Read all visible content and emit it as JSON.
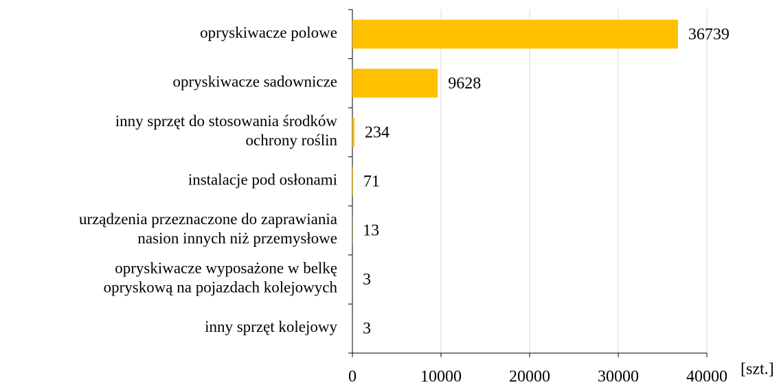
{
  "chart_data": {
    "type": "bar",
    "orientation": "horizontal",
    "categories": [
      "opryskiwacze polowe",
      "opryskiwacze sadownicze",
      "inny sprzęt do stosowania środków\nochrony roślin",
      "instalacje pod osłonami",
      "urządzenia przeznaczone do zaprawiania\nnasion innych niż przemysłowe",
      "opryskiwacze wyposażone w belkę\nopryskową na pojazdach kolejowych",
      "inny sprzęt kolejowy"
    ],
    "values": [
      36739,
      9628,
      234,
      71,
      13,
      3,
      3
    ],
    "color": "#ffc000",
    "xlim": [
      0,
      40000
    ],
    "xticks": [
      0,
      10000,
      20000,
      30000,
      40000
    ],
    "x_label": "[szt.]",
    "grid": true
  }
}
